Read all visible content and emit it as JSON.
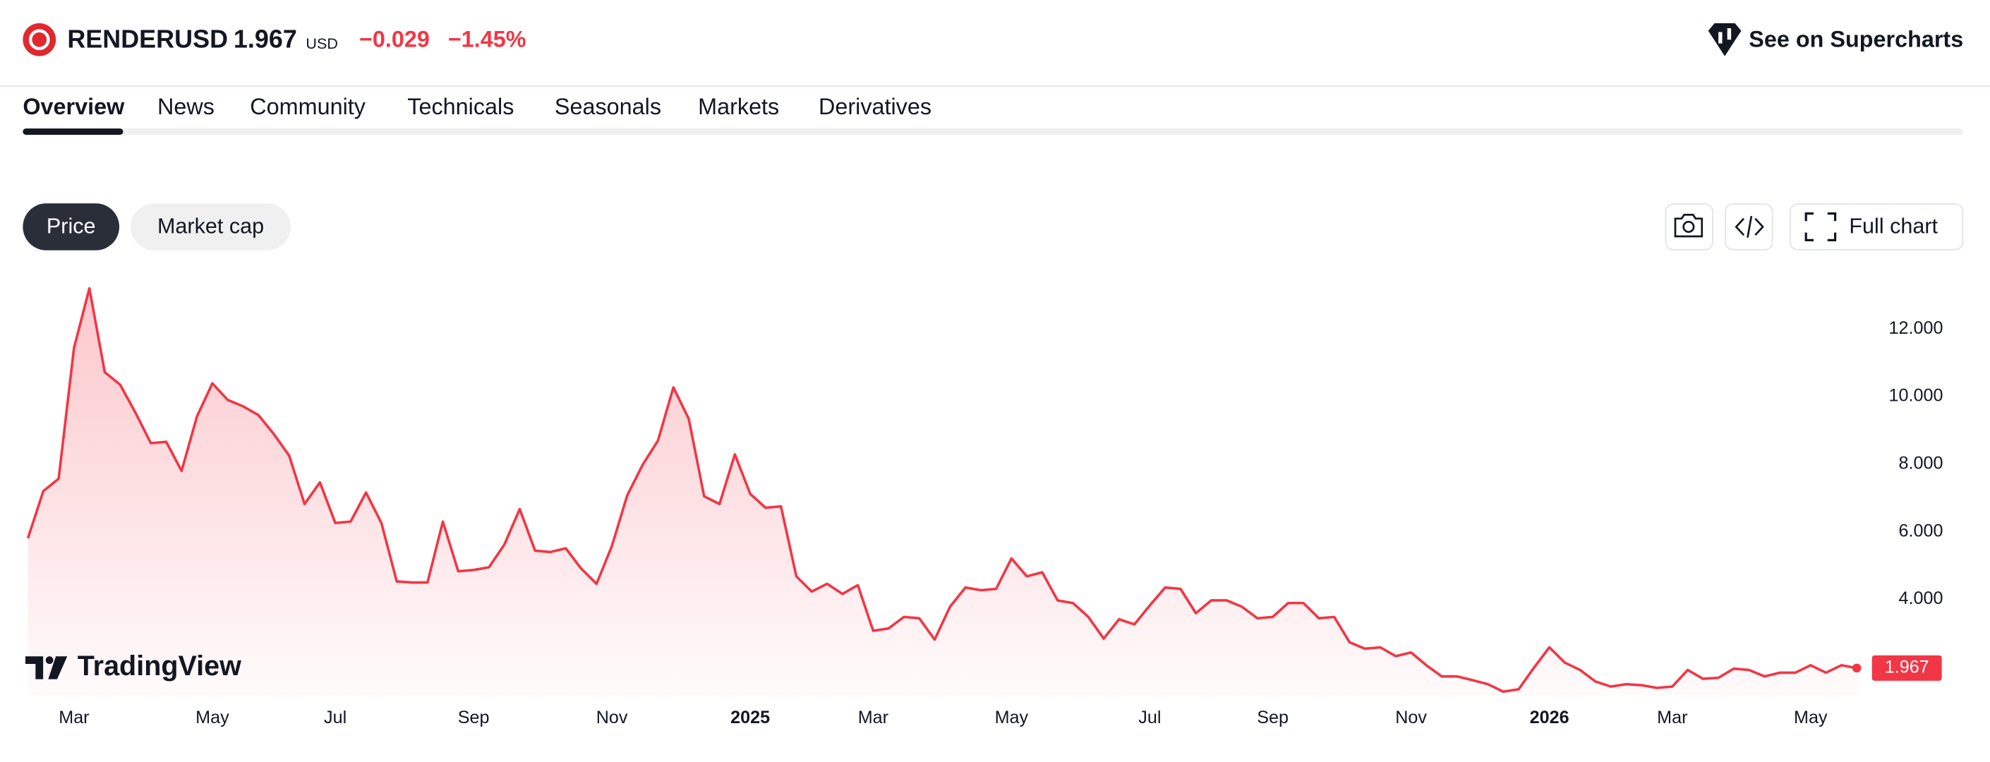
{
  "header": {
    "symbol": "RENDERUSD",
    "price": "1.967",
    "currency": "USD",
    "change": "−0.029",
    "change_percent": "−1.45%",
    "supercharts": "See on Supercharts"
  },
  "tabs": [
    "Overview",
    "News",
    "Community",
    "Technicals",
    "Seasonals",
    "Markets",
    "Derivatives"
  ],
  "toggles": [
    "Price",
    "Market cap"
  ],
  "full_chart": "Full chart",
  "chart_data": {
    "type": "line",
    "color": "#f23645",
    "watermark": "TradingView",
    "values": [
      5.81,
      7.2,
      7.57,
      11.44,
      13.2,
      10.72,
      10.35,
      9.52,
      8.62,
      8.66,
      7.8,
      9.41,
      10.39,
      9.9,
      9.71,
      9.45,
      8.89,
      8.25,
      6.82,
      7.46,
      6.26,
      6.3,
      7.16,
      6.26,
      4.53,
      4.5,
      4.5,
      6.3,
      4.83,
      4.87,
      4.95,
      5.62,
      6.67,
      5.44,
      5.4,
      5.51,
      4.91,
      4.46,
      5.58,
      7.08,
      7.98,
      8.7,
      10.27,
      9.34,
      7.05,
      6.82,
      8.29,
      7.12,
      6.71,
      6.75,
      4.68,
      4.23,
      4.46,
      4.16,
      4.42,
      3.07,
      3.14,
      3.48,
      3.44,
      2.81,
      3.78,
      4.35,
      4.27,
      4.31,
      5.21,
      4.68,
      4.8,
      3.97,
      3.89,
      3.48,
      2.84,
      3.41,
      3.26,
      3.82,
      4.35,
      4.31,
      3.59,
      3.97,
      3.97,
      3.78,
      3.44,
      3.48,
      3.89,
      3.89,
      3.44,
      3.48,
      2.73,
      2.54,
      2.58,
      2.32,
      2.43,
      2.05,
      1.72,
      1.72,
      1.61,
      1.49,
      1.27,
      1.34,
      1.98,
      2.58,
      2.13,
      1.91,
      1.57,
      1.42,
      1.49,
      1.46,
      1.38,
      1.42,
      1.91,
      1.65,
      1.68,
      1.95,
      1.91,
      1.72,
      1.83,
      1.83,
      2.05,
      1.83,
      2.05,
      1.967
    ],
    "xlim": [
      0,
      119
    ],
    "xticks": [
      {
        "value": 3,
        "label": "Mar"
      },
      {
        "value": 12,
        "label": "May"
      },
      {
        "value": 20,
        "label": "Jul"
      },
      {
        "value": 29,
        "label": "Sep"
      },
      {
        "value": 38,
        "label": "Nov"
      },
      {
        "value": 47,
        "label": "2025"
      },
      {
        "value": 55,
        "label": "Mar"
      },
      {
        "value": 64,
        "label": "May"
      },
      {
        "value": 73,
        "label": "Jul"
      },
      {
        "value": 81,
        "label": "Sep"
      },
      {
        "value": 90,
        "label": "Nov"
      },
      {
        "value": 99,
        "label": "2026"
      },
      {
        "value": 107,
        "label": "Mar"
      },
      {
        "value": 116,
        "label": "May"
      }
    ],
    "ylim": [
      1.15,
      13.65
    ],
    "yticks": [
      {
        "value": 4,
        "label": "4.000"
      },
      {
        "value": 6,
        "label": "6.000"
      },
      {
        "value": 8,
        "label": "8.000"
      },
      {
        "value": 10,
        "label": "10.000"
      },
      {
        "value": 12,
        "label": "12.000"
      }
    ]
  }
}
